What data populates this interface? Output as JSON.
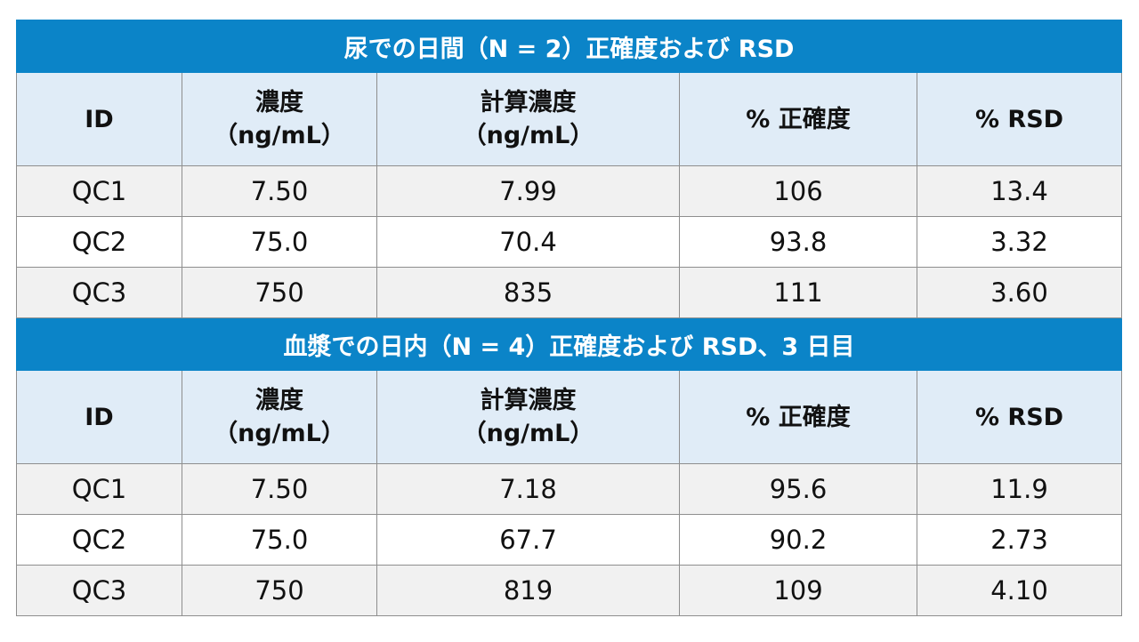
{
  "tables": [
    {
      "title": "尿での日間（N = 2）正確度および RSD",
      "headers": {
        "id": "ID",
        "conc_line1": "濃度",
        "conc_line2": "（ng/mL）",
        "calc_line1": "計算濃度",
        "calc_line2": "（ng/mL）",
        "accuracy": "% 正確度",
        "rsd": "% RSD"
      },
      "rows": [
        {
          "id": "QC1",
          "conc": "7.50",
          "calc": "7.99",
          "accuracy": "106",
          "rsd": "13.4"
        },
        {
          "id": "QC2",
          "conc": "75.0",
          "calc": "70.4",
          "accuracy": "93.8",
          "rsd": "3.32"
        },
        {
          "id": "QC3",
          "conc": "750",
          "calc": "835",
          "accuracy": "111",
          "rsd": "3.60"
        }
      ]
    },
    {
      "title": "血漿での日内（N = 4）正確度および RSD、3 日目",
      "headers": {
        "id": "ID",
        "conc_line1": "濃度",
        "conc_line2": "（ng/mL）",
        "calc_line1": "計算濃度",
        "calc_line2": "（ng/mL）",
        "accuracy": "% 正確度",
        "rsd": "% RSD"
      },
      "rows": [
        {
          "id": "QC1",
          "conc": "7.50",
          "calc": "7.18",
          "accuracy": "95.6",
          "rsd": "11.9"
        },
        {
          "id": "QC2",
          "conc": "75.0",
          "calc": "67.7",
          "accuracy": "90.2",
          "rsd": "2.73"
        },
        {
          "id": "QC3",
          "conc": "750",
          "calc": "819",
          "accuracy": "109",
          "rsd": "4.10"
        }
      ]
    }
  ],
  "colors": {
    "title_bar": "#0b84c8",
    "header_bg": "#e0ecf7",
    "row_alt_bg": "#f1f1f1",
    "border": "#8e8e8e"
  }
}
